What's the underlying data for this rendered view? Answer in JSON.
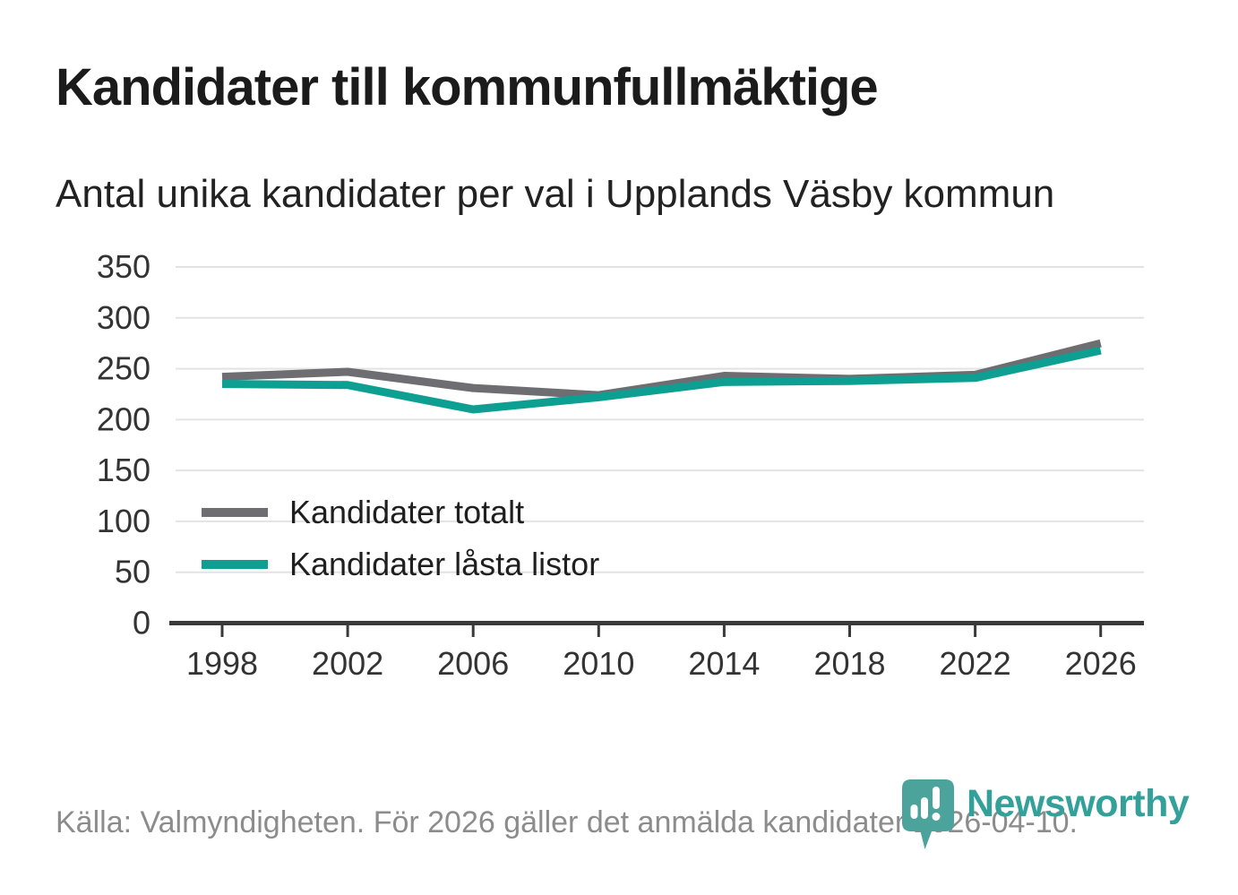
{
  "header": {
    "title": "Kandidater till kommunfullmäktige",
    "subtitle": "Antal unika kandidater per val i Upplands Väsby kommun"
  },
  "chart_data": {
    "type": "line",
    "x": [
      1998,
      2002,
      2006,
      2010,
      2014,
      2018,
      2022,
      2026
    ],
    "series": [
      {
        "name": "Kandidater totalt",
        "color": "#6e6e72",
        "values": [
          242,
          247,
          231,
          224,
          243,
          240,
          244,
          275
        ]
      },
      {
        "name": "Kandidater låsta listor",
        "color": "#0da092",
        "values": [
          235,
          234,
          210,
          222,
          237,
          238,
          241,
          268
        ]
      }
    ],
    "title": "Kandidater till kommunfullmäktige",
    "subtitle": "Antal unika kandidater per val i Upplands Väsby kommun",
    "xlabel": "",
    "ylabel": "",
    "ylim": [
      0,
      350
    ],
    "yticks": [
      0,
      50,
      100,
      150,
      200,
      250,
      300,
      350
    ],
    "grid": true,
    "grid_color": "#e3e3e3",
    "axis_color": "#3a3a3a",
    "tick_label_color": "#333333",
    "legend_position": "inside-left"
  },
  "footer": {
    "source": "Källa: Valmyndigheten. För 2026 gäller det anmälda kandidater 2026-04-10.",
    "brand": "Newsworthy",
    "brand_color": "#33a19a",
    "brand_icon_color": "#4ba39c"
  }
}
